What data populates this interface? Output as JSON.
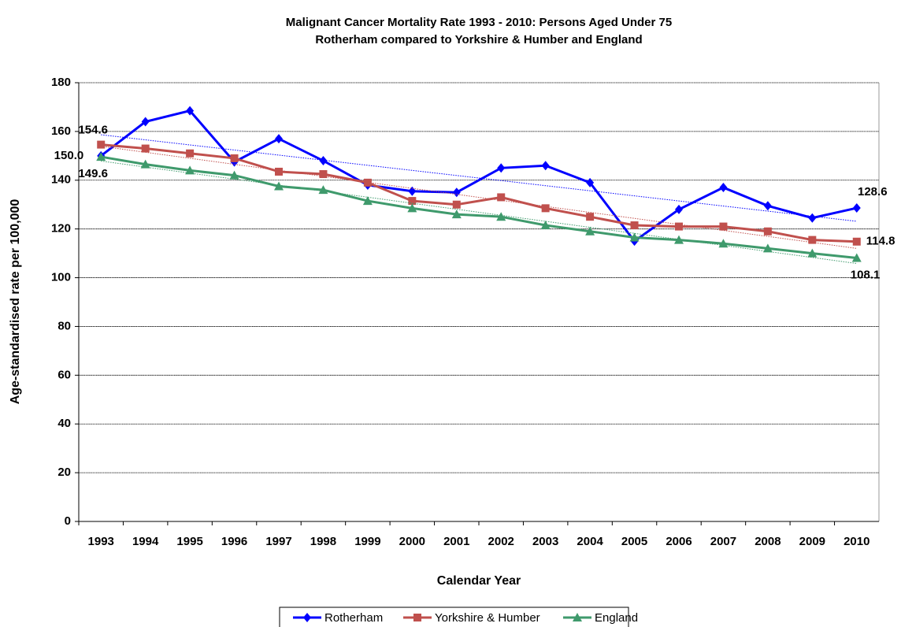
{
  "chart_data": {
    "type": "line",
    "title": "Malignant Cancer Mortality Rate 1993 - 2010: Persons Aged Under 75",
    "subtitle": "Rotherham compared to Yorkshire & Humber and England",
    "x_label": "Calendar Year",
    "y_label": "Age-standardised rate per 100,000",
    "categories": [
      "1993",
      "1994",
      "1995",
      "1996",
      "1997",
      "1998",
      "1999",
      "2000",
      "2001",
      "2002",
      "2003",
      "2004",
      "2005",
      "2006",
      "2007",
      "2008",
      "2009",
      "2010"
    ],
    "series": [
      {
        "name": "Rotherham",
        "color": "#0000ff",
        "marker": "diamond",
        "values": [
          150.0,
          164,
          168.5,
          147.5,
          157,
          148,
          138,
          135.5,
          135,
          145,
          146,
          139,
          115,
          128,
          137,
          129.5,
          124.5,
          128.6
        ],
        "value_labels": [
          "150.0",
          null,
          null,
          null,
          null,
          null,
          null,
          null,
          null,
          null,
          null,
          null,
          null,
          null,
          null,
          null,
          null,
          "128.6"
        ]
      },
      {
        "name": "Yorkshire & Humber",
        "color": "#c0504d",
        "marker": "square",
        "values": [
          154.6,
          153,
          151,
          149,
          143.5,
          142.5,
          139,
          131.5,
          130,
          133,
          128.5,
          125,
          121.5,
          121,
          121,
          119,
          115.5,
          114.8
        ],
        "value_labels": [
          "154.6",
          null,
          null,
          null,
          null,
          null,
          null,
          null,
          null,
          null,
          null,
          null,
          null,
          null,
          null,
          null,
          null,
          "114.8"
        ]
      },
      {
        "name": "England",
        "color": "#3f9a6c",
        "marker": "triangle",
        "values": [
          149.6,
          146.5,
          144,
          142,
          137.5,
          136,
          131.5,
          128.5,
          126,
          125,
          121.5,
          119,
          116.5,
          115.5,
          114,
          112,
          110,
          108.1
        ],
        "value_labels": [
          "149.6",
          null,
          null,
          null,
          null,
          null,
          null,
          null,
          null,
          null,
          null,
          null,
          null,
          null,
          null,
          null,
          null,
          "108.1"
        ]
      }
    ],
    "ylim": [
      0,
      180
    ],
    "yticks": [
      0,
      20,
      40,
      60,
      80,
      100,
      120,
      140,
      160,
      180
    ],
    "grid": true,
    "trendline": true,
    "legend": "bottom"
  }
}
